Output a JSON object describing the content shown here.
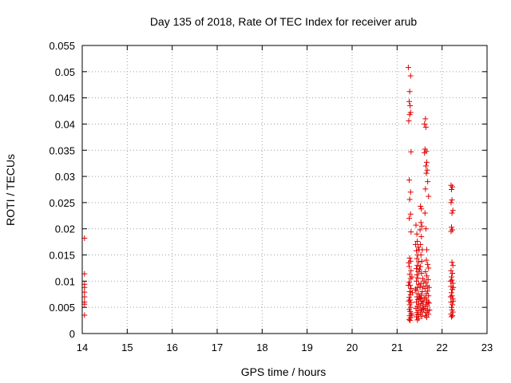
{
  "chart_data": {
    "type": "scatter",
    "title": "Day 135 of 2018, Rate Of TEC Index for receiver arub",
    "xlabel": "GPS time / hours",
    "ylabel": "ROTI / TECUs",
    "xlim": [
      14,
      23
    ],
    "ylim": [
      0,
      0.055
    ],
    "xticks": [
      14,
      15,
      16,
      17,
      18,
      19,
      20,
      21,
      22,
      23
    ],
    "yticks": [
      0,
      0.005,
      0.01,
      0.015,
      0.02,
      0.025,
      0.03,
      0.035,
      0.04,
      0.045,
      0.05,
      0.055
    ],
    "ytick_labels": [
      "0",
      "0.005",
      "0.01",
      "0.015",
      "0.02",
      "0.025",
      "0.03",
      "0.035",
      "0.04",
      "0.045",
      "0.05",
      "0.055"
    ],
    "grid": true,
    "marker": "+",
    "color": "#e00000",
    "series": [
      {
        "name": "ROTI",
        "points": [
          [
            14.05,
            0.0182
          ],
          [
            14.05,
            0.0114
          ],
          [
            14.05,
            0.0094
          ],
          [
            14.05,
            0.0088
          ],
          [
            14.05,
            0.0079
          ],
          [
            14.05,
            0.007
          ],
          [
            14.05,
            0.006
          ],
          [
            14.05,
            0.0056
          ],
          [
            14.05,
            0.0035
          ],
          [
            21.25,
            0.0508
          ],
          [
            21.3,
            0.0492
          ],
          [
            21.28,
            0.0462
          ],
          [
            21.27,
            0.0443
          ],
          [
            21.29,
            0.0435
          ],
          [
            21.3,
            0.0422
          ],
          [
            21.28,
            0.0418
          ],
          [
            21.26,
            0.0406
          ],
          [
            21.31,
            0.0347
          ],
          [
            21.27,
            0.0293
          ],
          [
            21.3,
            0.027
          ],
          [
            21.28,
            0.0256
          ],
          [
            21.3,
            0.0228
          ],
          [
            21.27,
            0.022
          ],
          [
            21.31,
            0.0194
          ],
          [
            21.28,
            0.0144
          ],
          [
            21.3,
            0.0138
          ],
          [
            21.27,
            0.0128
          ],
          [
            21.31,
            0.012
          ],
          [
            21.28,
            0.0113
          ],
          [
            21.3,
            0.0105
          ],
          [
            21.27,
            0.0098
          ],
          [
            21.29,
            0.0092
          ],
          [
            21.31,
            0.0086
          ],
          [
            21.28,
            0.008
          ],
          [
            21.3,
            0.0074
          ],
          [
            21.27,
            0.0069
          ],
          [
            21.29,
            0.0064
          ],
          [
            21.31,
            0.0059
          ],
          [
            21.28,
            0.0055
          ],
          [
            21.3,
            0.005
          ],
          [
            21.27,
            0.0046
          ],
          [
            21.29,
            0.0042
          ],
          [
            21.31,
            0.0038
          ],
          [
            21.28,
            0.0034
          ],
          [
            21.3,
            0.003
          ],
          [
            21.27,
            0.0027
          ],
          [
            21.29,
            0.0025
          ],
          [
            21.33,
            0.0035
          ],
          [
            21.26,
            0.0062
          ],
          [
            21.34,
            0.0078
          ],
          [
            21.25,
            0.0092
          ],
          [
            21.33,
            0.0108
          ],
          [
            21.26,
            0.0135
          ],
          [
            21.42,
            0.0207
          ],
          [
            21.44,
            0.019
          ],
          [
            21.45,
            0.0176
          ],
          [
            21.47,
            0.0165
          ],
          [
            21.43,
            0.0158
          ],
          [
            21.46,
            0.015
          ],
          [
            21.44,
            0.0143
          ],
          [
            21.48,
            0.0137
          ],
          [
            21.45,
            0.013
          ],
          [
            21.43,
            0.0124
          ],
          [
            21.47,
            0.0118
          ],
          [
            21.44,
            0.0112
          ],
          [
            21.46,
            0.0106
          ],
          [
            21.43,
            0.01
          ],
          [
            21.48,
            0.0094
          ],
          [
            21.45,
            0.0088
          ],
          [
            21.42,
            0.0082
          ],
          [
            21.47,
            0.0076
          ],
          [
            21.44,
            0.007
          ],
          [
            21.46,
            0.0065
          ],
          [
            21.43,
            0.006
          ],
          [
            21.48,
            0.0056
          ],
          [
            21.45,
            0.0052
          ],
          [
            21.42,
            0.0048
          ],
          [
            21.47,
            0.0044
          ],
          [
            21.44,
            0.004
          ],
          [
            21.46,
            0.0036
          ],
          [
            21.43,
            0.0032
          ],
          [
            21.48,
            0.0029
          ],
          [
            21.45,
            0.0026
          ],
          [
            21.41,
            0.017
          ],
          [
            21.49,
            0.016
          ],
          [
            21.5,
            0.0122
          ],
          [
            21.41,
            0.0085
          ],
          [
            21.49,
            0.0066
          ],
          [
            21.52,
            0.0243
          ],
          [
            21.54,
            0.0238
          ],
          [
            21.53,
            0.0212
          ],
          [
            21.55,
            0.0205
          ],
          [
            21.51,
            0.0198
          ],
          [
            21.54,
            0.0185
          ],
          [
            21.52,
            0.017
          ],
          [
            21.56,
            0.016
          ],
          [
            21.53,
            0.015
          ],
          [
            21.55,
            0.0138
          ],
          [
            21.52,
            0.0128
          ],
          [
            21.54,
            0.0115
          ],
          [
            21.57,
            0.0105
          ],
          [
            21.53,
            0.0096
          ],
          [
            21.51,
            0.0088
          ],
          [
            21.56,
            0.008
          ],
          [
            21.54,
            0.0073
          ],
          [
            21.52,
            0.0067
          ],
          [
            21.55,
            0.0062
          ],
          [
            21.53,
            0.0057
          ],
          [
            21.57,
            0.0053
          ],
          [
            21.51,
            0.0049
          ],
          [
            21.54,
            0.0045
          ],
          [
            21.56,
            0.0041
          ],
          [
            21.52,
            0.0037
          ],
          [
            21.55,
            0.0033
          ],
          [
            21.58,
            0.006
          ],
          [
            21.5,
            0.007
          ],
          [
            21.58,
            0.009
          ],
          [
            21.59,
            0.0047
          ],
          [
            21.63,
            0.041
          ],
          [
            21.61,
            0.04
          ],
          [
            21.64,
            0.0394
          ],
          [
            21.62,
            0.0352
          ],
          [
            21.65,
            0.0348
          ],
          [
            21.61,
            0.0345
          ],
          [
            21.66,
            0.0327
          ],
          [
            21.64,
            0.032
          ],
          [
            21.67,
            0.0312
          ],
          [
            21.65,
            0.0306
          ],
          [
            21.68,
            0.029
          ],
          [
            21.63,
            0.0276
          ],
          [
            21.7,
            0.0262
          ],
          [
            21.62,
            0.023
          ],
          [
            21.64,
            0.02
          ],
          [
            21.66,
            0.016
          ],
          [
            21.65,
            0.014
          ],
          [
            21.68,
            0.0132
          ],
          [
            21.7,
            0.0125
          ],
          [
            21.63,
            0.0118
          ],
          [
            21.66,
            0.011
          ],
          [
            21.69,
            0.0103
          ],
          [
            21.64,
            0.0097
          ],
          [
            21.67,
            0.0091
          ],
          [
            21.62,
            0.0086
          ],
          [
            21.68,
            0.0081
          ],
          [
            21.65,
            0.0076
          ],
          [
            21.7,
            0.0072
          ],
          [
            21.63,
            0.0068
          ],
          [
            21.66,
            0.0064
          ],
          [
            21.69,
            0.006
          ],
          [
            21.64,
            0.0056
          ],
          [
            21.67,
            0.0052
          ],
          [
            21.62,
            0.0048
          ],
          [
            21.68,
            0.0044
          ],
          [
            21.65,
            0.004
          ],
          [
            21.7,
            0.0037
          ],
          [
            21.63,
            0.0034
          ],
          [
            21.66,
            0.0031
          ],
          [
            21.71,
            0.0058
          ],
          [
            21.6,
            0.0068
          ],
          [
            21.71,
            0.0088
          ],
          [
            21.6,
            0.01
          ],
          [
            21.72,
            0.0045
          ],
          [
            22.2,
            0.0283
          ],
          [
            22.23,
            0.028
          ],
          [
            22.21,
            0.0275
          ],
          [
            22.22,
            0.0255
          ],
          [
            22.2,
            0.025
          ],
          [
            22.24,
            0.0235
          ],
          [
            22.22,
            0.023
          ],
          [
            22.21,
            0.0203
          ],
          [
            22.23,
            0.0198
          ],
          [
            22.2,
            0.0195
          ],
          [
            22.22,
            0.0136
          ],
          [
            22.24,
            0.013
          ],
          [
            22.2,
            0.012
          ],
          [
            22.23,
            0.0115
          ],
          [
            22.21,
            0.0108
          ],
          [
            22.22,
            0.0102
          ],
          [
            22.24,
            0.0096
          ],
          [
            22.2,
            0.009
          ],
          [
            22.23,
            0.0084
          ],
          [
            22.21,
            0.0078
          ],
          [
            22.22,
            0.0072
          ],
          [
            22.24,
            0.0066
          ],
          [
            22.2,
            0.006
          ],
          [
            22.23,
            0.0055
          ],
          [
            22.21,
            0.005
          ],
          [
            22.22,
            0.0045
          ],
          [
            22.24,
            0.0041
          ],
          [
            22.2,
            0.0037
          ],
          [
            22.23,
            0.0034
          ],
          [
            22.21,
            0.0032
          ],
          [
            22.19,
            0.007
          ],
          [
            22.25,
            0.0062
          ],
          [
            22.19,
            0.01
          ],
          [
            22.25,
            0.0088
          ]
        ]
      }
    ]
  }
}
